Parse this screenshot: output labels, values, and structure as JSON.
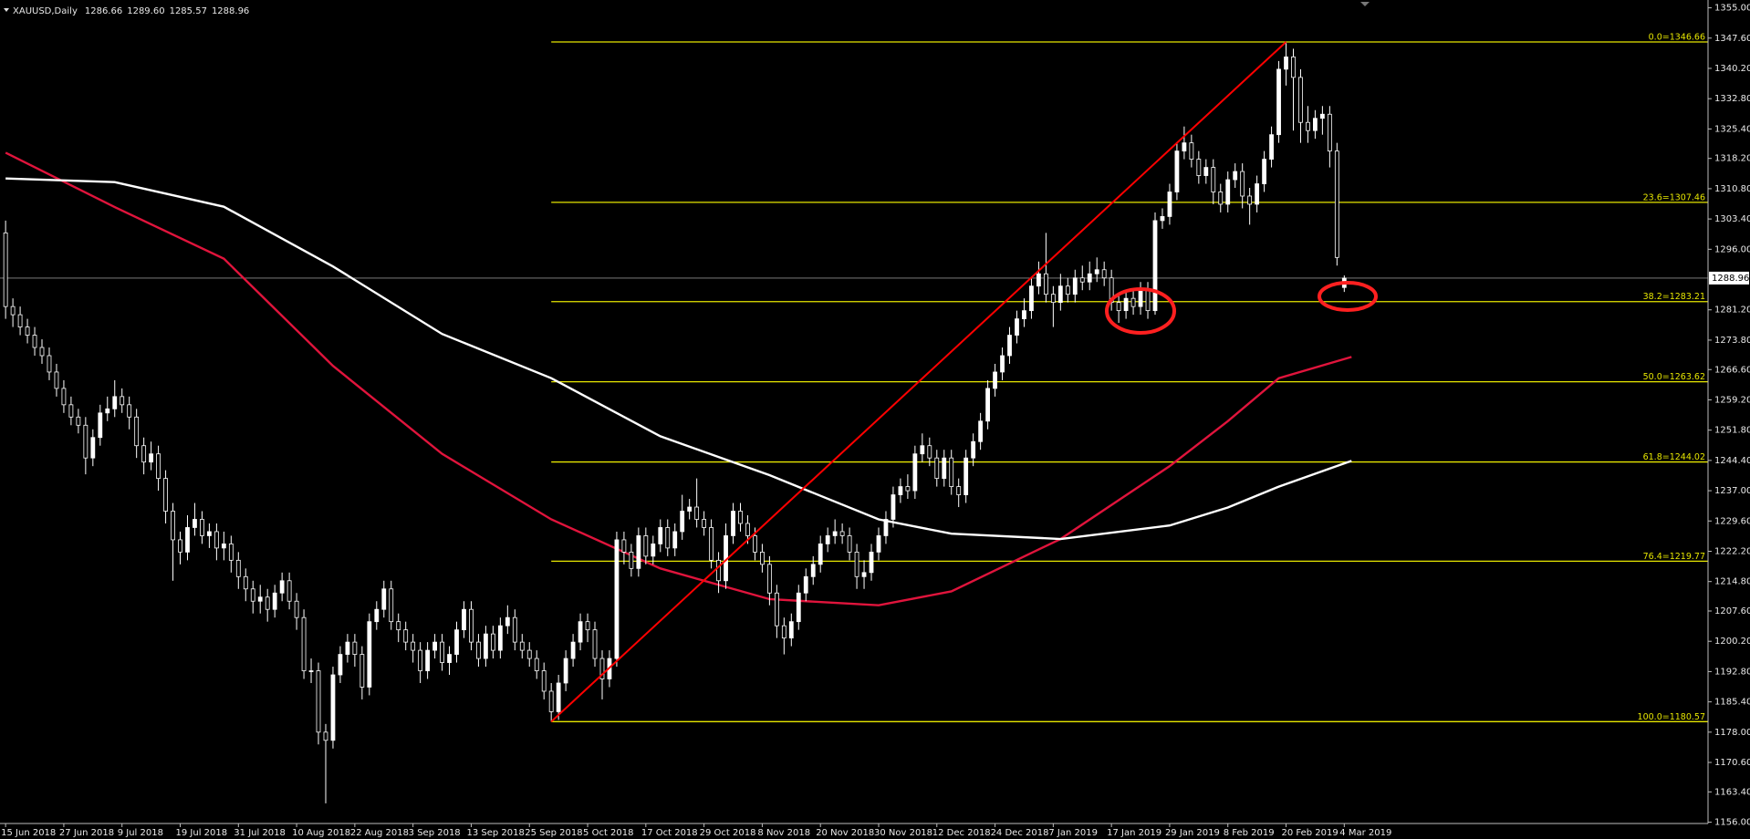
{
  "chart_data": {
    "type": "candlestick",
    "title": "XAUUSD,Daily",
    "readout": [
      "1286.66",
      "1289.60",
      "1285.57",
      "1288.96"
    ],
    "categories": [
      "15 Jun 2018",
      null,
      null,
      null,
      null,
      null,
      null,
      null,
      "27 Jun 2018",
      null,
      null,
      null,
      null,
      null,
      null,
      null,
      "9 Jul 2018",
      null,
      null,
      null,
      null,
      null,
      null,
      null,
      "19 Jul 2018",
      null,
      null,
      null,
      null,
      null,
      null,
      null,
      "31 Jul 2018",
      null,
      null,
      null,
      null,
      null,
      null,
      null,
      "10 Aug 2018",
      null,
      null,
      null,
      null,
      null,
      null,
      null,
      "22 Aug 2018",
      null,
      null,
      null,
      null,
      null,
      null,
      null,
      "3 Sep 2018",
      null,
      null,
      null,
      null,
      null,
      null,
      null,
      "13 Sep 2018",
      null,
      null,
      null,
      null,
      null,
      null,
      null,
      "25 Sep 2018",
      null,
      null,
      null,
      null,
      null,
      null,
      null,
      "5 Oct 2018",
      null,
      null,
      null,
      null,
      null,
      null,
      null,
      "17 Oct 2018",
      null,
      null,
      null,
      null,
      null,
      null,
      null,
      "29 Oct 2018",
      null,
      null,
      null,
      null,
      null,
      null,
      null,
      "8 Nov 2018",
      null,
      null,
      null,
      null,
      null,
      null,
      null,
      "20 Nov 2018",
      null,
      null,
      null,
      null,
      null,
      null,
      null,
      "30 Nov 2018",
      null,
      null,
      null,
      null,
      null,
      null,
      null,
      "12 Dec 2018",
      null,
      null,
      null,
      null,
      null,
      null,
      null,
      "24 Dec 2018",
      null,
      null,
      null,
      null,
      null,
      null,
      null,
      "7 Jan 2019",
      null,
      null,
      null,
      null,
      null,
      null,
      null,
      "17 Jan 2019",
      null,
      null,
      null,
      null,
      null,
      null,
      null,
      "29 Jan 2019",
      null,
      null,
      null,
      null,
      null,
      null,
      null,
      "8 Feb 2019",
      null,
      null,
      null,
      null,
      null,
      null,
      null,
      "20 Feb 2019",
      null,
      null,
      null,
      null,
      null,
      null,
      null,
      "4 Mar 2019"
    ],
    "open": [
      1300,
      1282,
      1280,
      1277,
      1275,
      1272,
      1270,
      1266,
      1262,
      1258,
      1255,
      1253,
      1245,
      1250,
      1256,
      1257,
      1260,
      1258,
      1255,
      1248,
      1244,
      1246,
      1240,
      1232,
      1225,
      1222,
      1228,
      1230,
      1226,
      1227,
      1223,
      1224,
      1220,
      1216,
      1213,
      1210,
      1211,
      1208,
      1212,
      1215,
      1210,
      1206,
      1193,
      1193,
      1178,
      1176,
      1192,
      1197,
      1200,
      1197,
      1189,
      1205,
      1208,
      1213,
      1205,
      1203,
      1200,
      1198,
      1193,
      1198,
      1200,
      1195,
      1197,
      1203,
      1208,
      1200,
      1196,
      1202,
      1198,
      1204,
      1206,
      1200,
      1198,
      1196,
      1193,
      1188,
      1183,
      1190,
      1196,
      1200,
      1205,
      1203,
      1196,
      1191,
      1196,
      1225,
      1222,
      1218,
      1226,
      1221,
      1224,
      1228,
      1223,
      1227,
      1232,
      1233,
      1230,
      1228,
      1220,
      1215,
      1226,
      1232,
      1229,
      1226,
      1222,
      1219,
      1212,
      1204,
      1201,
      1205,
      1212,
      1216,
      1219,
      1224,
      1226,
      1227,
      1226,
      1222,
      1216,
      1217,
      1222,
      1226,
      1230,
      1236,
      1238,
      1237,
      1246,
      1248,
      1245,
      1240,
      1245,
      1238,
      1236,
      1245,
      1249,
      1254,
      1262,
      1266,
      1270,
      1275,
      1279,
      1281,
      1287,
      1290,
      1285,
      1283,
      1287,
      1285,
      1289,
      1288,
      1290,
      1291,
      1289,
      1283,
      1281,
      1284,
      1282,
      1286,
      1281,
      1303,
      1304,
      1310,
      1320,
      1322,
      1318,
      1314,
      1316,
      1310,
      1307,
      1313,
      1315,
      1309,
      1307,
      1312,
      1318,
      1324,
      1340,
      1343,
      1338,
      1327,
      1325,
      1328,
      1329,
      1320,
      1286.66
    ],
    "high": [
      1303,
      1284,
      1282,
      1279,
      1277,
      1274,
      1272,
      1268,
      1264,
      1260,
      1257,
      1255,
      1252,
      1258,
      1260,
      1264,
      1262,
      1260,
      1257,
      1250,
      1249,
      1248,
      1242,
      1234,
      1227,
      1231,
      1234,
      1232,
      1229,
      1229,
      1227,
      1226,
      1222,
      1218,
      1215,
      1214,
      1213,
      1214,
      1217,
      1217,
      1212,
      1208,
      1196,
      1195,
      1180,
      1194,
      1199,
      1202,
      1202,
      1199,
      1207,
      1210,
      1215,
      1215,
      1207,
      1205,
      1202,
      1200,
      1200,
      1202,
      1202,
      1199,
      1205,
      1210,
      1210,
      1202,
      1204,
      1204,
      1206,
      1209,
      1208,
      1202,
      1200,
      1198,
      1195,
      1190,
      1192,
      1198,
      1202,
      1207,
      1207,
      1205,
      1198,
      1198,
      1227,
      1227,
      1224,
      1228,
      1228,
      1226,
      1230,
      1230,
      1229,
      1236,
      1235,
      1240,
      1232,
      1230,
      1222,
      1229,
      1234,
      1234,
      1231,
      1228,
      1224,
      1221,
      1214,
      1206,
      1207,
      1214,
      1218,
      1221,
      1226,
      1228,
      1230,
      1229,
      1228,
      1224,
      1220,
      1224,
      1228,
      1232,
      1238,
      1240,
      1241,
      1248,
      1251,
      1250,
      1247,
      1247,
      1247,
      1240,
      1247,
      1251,
      1256,
      1264,
      1268,
      1272,
      1277,
      1281,
      1284,
      1289,
      1293,
      1300,
      1287,
      1290,
      1289,
      1291,
      1292,
      1293,
      1294,
      1293,
      1291,
      1285,
      1286,
      1286,
      1288,
      1288,
      1305,
      1306,
      1312,
      1322,
      1326,
      1324,
      1320,
      1318,
      1318,
      1312,
      1315,
      1317,
      1317,
      1311,
      1314,
      1320,
      1326,
      1342,
      1346.66,
      1345,
      1340,
      1331,
      1330,
      1331,
      1331,
      1322,
      1289.6
    ],
    "low": [
      1279,
      1277,
      1275,
      1273,
      1270,
      1268,
      1264,
      1260,
      1256,
      1253,
      1251,
      1241,
      1243,
      1248,
      1254,
      1255,
      1256,
      1252,
      1245,
      1241,
      1242,
      1237,
      1229,
      1215,
      1219,
      1220,
      1226,
      1224,
      1223,
      1220,
      1220,
      1217,
      1213,
      1210,
      1207,
      1207,
      1205,
      1206,
      1210,
      1208,
      1203,
      1191,
      1190,
      1175,
      1160.6,
      1174,
      1190,
      1195,
      1194,
      1186,
      1187,
      1203,
      1206,
      1203,
      1200,
      1198,
      1195,
      1190,
      1191,
      1196,
      1193,
      1192,
      1195,
      1201,
      1198,
      1194,
      1194,
      1196,
      1196,
      1202,
      1198,
      1196,
      1194,
      1191,
      1186,
      1180.57,
      1181,
      1188,
      1194,
      1198,
      1200,
      1194,
      1186,
      1189,
      1194,
      1219,
      1216,
      1216,
      1219,
      1219,
      1222,
      1221,
      1221,
      1225,
      1230,
      1228,
      1226,
      1218,
      1212,
      1213,
      1224,
      1227,
      1224,
      1220,
      1217,
      1209,
      1201,
      1197,
      1199,
      1203,
      1210,
      1214,
      1217,
      1222,
      1224,
      1224,
      1220,
      1213,
      1213,
      1215,
      1220,
      1224,
      1228,
      1234,
      1235,
      1235,
      1244,
      1243,
      1238,
      1238,
      1236,
      1233,
      1234,
      1243,
      1247,
      1252,
      1260,
      1264,
      1268,
      1273,
      1277,
      1279,
      1285,
      1283,
      1277,
      1281,
      1283,
      1283,
      1286,
      1286,
      1288,
      1287,
      1281,
      1278,
      1279,
      1280,
      1280,
      1279,
      1280,
      1301,
      1302,
      1308,
      1318,
      1316,
      1312,
      1312,
      1307,
      1305,
      1305,
      1311,
      1306,
      1302,
      1305,
      1310,
      1316,
      1322,
      1336,
      1325,
      1322,
      1322,
      1323,
      1324,
      1316,
      1292,
      1285.57
    ],
    "close": [
      1282,
      1280,
      1277,
      1275,
      1272,
      1270,
      1266,
      1262,
      1258,
      1255,
      1253,
      1245,
      1250,
      1256,
      1257,
      1260,
      1258,
      1255,
      1248,
      1244,
      1246,
      1240,
      1232,
      1225,
      1222,
      1228,
      1230,
      1226,
      1227,
      1223,
      1224,
      1220,
      1216,
      1213,
      1210,
      1211,
      1208,
      1212,
      1215,
      1210,
      1206,
      1193,
      1193,
      1178,
      1176,
      1192,
      1197,
      1200,
      1197,
      1189,
      1205,
      1208,
      1213,
      1205,
      1203,
      1200,
      1198,
      1193,
      1198,
      1200,
      1195,
      1197,
      1203,
      1208,
      1200,
      1196,
      1202,
      1198,
      1204,
      1206,
      1200,
      1198,
      1196,
      1193,
      1188,
      1183,
      1190,
      1196,
      1200,
      1205,
      1203,
      1196,
      1191,
      1196,
      1225,
      1222,
      1218,
      1226,
      1221,
      1224,
      1228,
      1223,
      1227,
      1232,
      1233,
      1230,
      1228,
      1220,
      1215,
      1226,
      1232,
      1229,
      1226,
      1222,
      1219,
      1212,
      1204,
      1201,
      1205,
      1212,
      1216,
      1219,
      1224,
      1226,
      1227,
      1226,
      1222,
      1216,
      1217,
      1222,
      1226,
      1230,
      1236,
      1238,
      1237,
      1246,
      1248,
      1245,
      1240,
      1245,
      1238,
      1236,
      1245,
      1249,
      1254,
      1262,
      1266,
      1270,
      1275,
      1279,
      1281,
      1287,
      1290,
      1285,
      1283,
      1287,
      1285,
      1289,
      1288,
      1290,
      1291,
      1289,
      1283,
      1281,
      1284,
      1282,
      1286,
      1281,
      1303,
      1304,
      1310,
      1320,
      1322,
      1318,
      1314,
      1316,
      1310,
      1307,
      1313,
      1315,
      1309,
      1307,
      1312,
      1318,
      1324,
      1340,
      1343,
      1338,
      1327,
      1325,
      1328,
      1329,
      1320,
      1294,
      1288.96
    ],
    "bull_color": "#ffffff",
    "bear_color": "#000000",
    "wick_color": "#ffffff",
    "lines": [
      {
        "color": "#e0143c",
        "x": [
          0,
          15,
          30,
          45,
          60,
          75,
          90,
          105,
          120,
          130,
          145,
          160,
          168,
          175,
          185
        ],
        "values": [
          1319.6,
          1306.3,
          1293.7,
          1267.5,
          1246,
          1230,
          1218,
          1210.5,
          1209,
          1212.4,
          1225.2,
          1243,
          1254,
          1264.5,
          1269.7
        ]
      },
      {
        "color": "#ffffff",
        "x": [
          0,
          15,
          30,
          45,
          60,
          75,
          90,
          105,
          120,
          130,
          145,
          160,
          168,
          175,
          185
        ],
        "values": [
          1313.3,
          1312.4,
          1306.4,
          1291.8,
          1275.3,
          1264.5,
          1250.3,
          1240.8,
          1230,
          1226.5,
          1225.2,
          1228.5,
          1232.9,
          1238,
          1244.3
        ]
      }
    ],
    "trendline": {
      "color": "#ff0000",
      "x": [
        75,
        176
      ],
      "values": [
        1180.57,
        1346.66
      ]
    },
    "fibonacci": {
      "color": "#e6e600",
      "start": 75,
      "levels": [
        {
          "value": 1346.66,
          "label": "0.0=1346.66"
        },
        {
          "value": 1307.46,
          "label": "23.6=1307.46"
        },
        {
          "value": 1283.21,
          "label": "38.2=1283.21"
        },
        {
          "value": 1263.62,
          "label": "50.0=1263.62"
        },
        {
          "value": 1244.02,
          "label": "61.8=1244.02"
        },
        {
          "value": 1219.77,
          "label": "76.4=1219.77"
        },
        {
          "value": 1180.57,
          "label": "100.0=1180.57"
        }
      ]
    },
    "last": {
      "value": 1288.96,
      "label": "1288.96"
    },
    "xlim": [
      -0.77,
      234
    ],
    "ylim": [
      1155.9,
      1356.91
    ],
    "yticks": [
      {
        "value": 1355,
        "label": "1355.00"
      },
      {
        "value": 1347.6,
        "label": "1347.60"
      },
      {
        "value": 1340.2,
        "label": "1340.20"
      },
      {
        "value": 1332.8,
        "label": "1332.80"
      },
      {
        "value": 1325.4,
        "label": "1325.40"
      },
      {
        "value": 1318.2,
        "label": "1318.20"
      },
      {
        "value": 1310.8,
        "label": "1310.80"
      },
      {
        "value": 1303.4,
        "label": "1303.40"
      },
      {
        "value": 1296,
        "label": "1296.00"
      },
      {
        "value": 1281.2,
        "label": "1281.20"
      },
      {
        "value": 1273.8,
        "label": "1273.80"
      },
      {
        "value": 1266.6,
        "label": "1266.60"
      },
      {
        "value": 1259.2,
        "label": "1259.20"
      },
      {
        "value": 1251.8,
        "label": "1251.80"
      },
      {
        "value": 1244.4,
        "label": "1244.40"
      },
      {
        "value": 1237,
        "label": "1237.00"
      },
      {
        "value": 1229.6,
        "label": "1229.60"
      },
      {
        "value": 1222.2,
        "label": "1222.20"
      },
      {
        "value": 1214.8,
        "label": "1214.80"
      },
      {
        "value": 1207.6,
        "label": "1207.60"
      },
      {
        "value": 1200.2,
        "label": "1200.20"
      },
      {
        "value": 1192.8,
        "label": "1192.80"
      },
      {
        "value": 1185.4,
        "label": "1185.40"
      },
      {
        "value": 1178,
        "label": "1178.00"
      },
      {
        "value": 1170.6,
        "label": "1170.60"
      },
      {
        "value": 1163.4,
        "label": "1163.40"
      },
      {
        "value": 1156,
        "label": "1156.00"
      }
    ]
  }
}
